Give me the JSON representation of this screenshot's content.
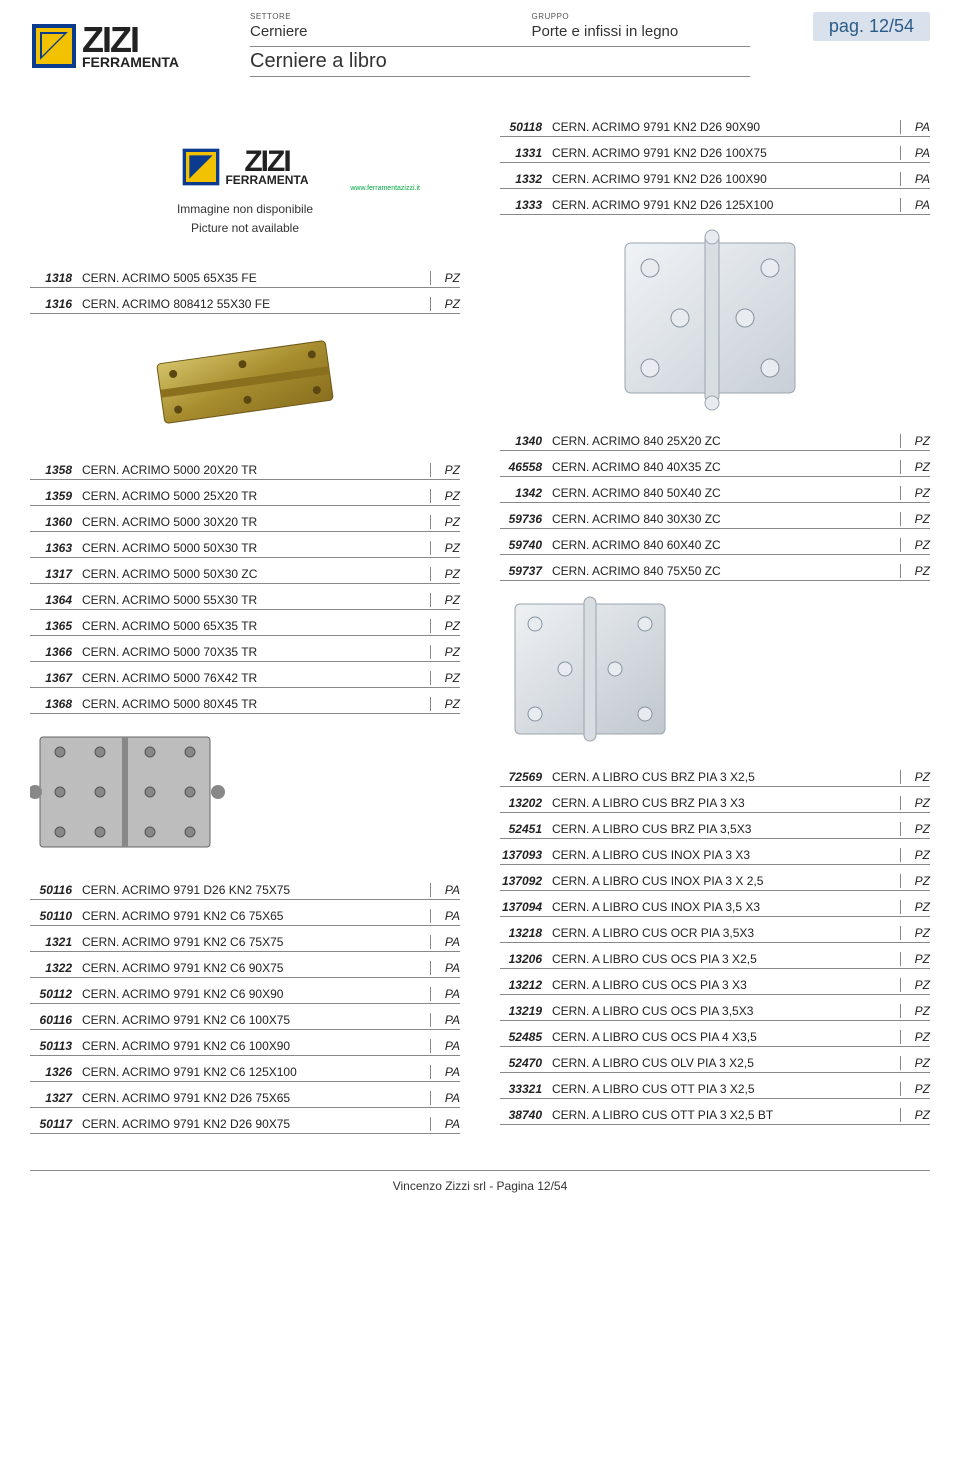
{
  "header": {
    "sector_label": "SETTORE",
    "sector_value": "Cerniere",
    "group_label": "GRUPPO",
    "group_value": "Porte e infissi in legno",
    "title": "Cerniere a libro",
    "page_badge": "pag. 12/54",
    "logo_brand": "ZIZI",
    "logo_sub": "FERRAMENTA",
    "logo_site": "www.ferramentazizzi.it"
  },
  "no_image": {
    "line1": "Immagine non disponibile",
    "line2": "Picture not available"
  },
  "colors": {
    "logo_blue": "#0a3b8f",
    "logo_yellow": "#f2c200",
    "badge_bg": "#d9e2ec",
    "badge_text": "#2a5b87",
    "hinge_brass": "#b8a24a",
    "hinge_steel": "#d8dde2",
    "hinge_dark": "#8b8b8b",
    "hinge_shadow": "#5a5a5a"
  },
  "left": {
    "group1": [
      {
        "code": "1318",
        "desc": "CERN. ACRIMO 5005 65X35 FE",
        "unit": "PZ"
      },
      {
        "code": "1316",
        "desc": "CERN. ACRIMO 808412 55X30 FE",
        "unit": "PZ"
      }
    ],
    "group2": [
      {
        "code": "1358",
        "desc": "CERN. ACRIMO 5000 20X20 TR",
        "unit": "PZ"
      },
      {
        "code": "1359",
        "desc": "CERN. ACRIMO 5000 25X20 TR",
        "unit": "PZ"
      },
      {
        "code": "1360",
        "desc": "CERN. ACRIMO 5000 30X20 TR",
        "unit": "PZ"
      },
      {
        "code": "1363",
        "desc": "CERN. ACRIMO 5000 50X30 TR",
        "unit": "PZ"
      },
      {
        "code": "1317",
        "desc": "CERN. ACRIMO 5000 50X30 ZC",
        "unit": "PZ"
      },
      {
        "code": "1364",
        "desc": "CERN. ACRIMO 5000 55X30 TR",
        "unit": "PZ"
      },
      {
        "code": "1365",
        "desc": "CERN. ACRIMO 5000 65X35 TR",
        "unit": "PZ"
      },
      {
        "code": "1366",
        "desc": "CERN. ACRIMO 5000 70X35 TR",
        "unit": "PZ"
      },
      {
        "code": "1367",
        "desc": "CERN. ACRIMO 5000 76X42 TR",
        "unit": "PZ"
      },
      {
        "code": "1368",
        "desc": "CERN. ACRIMO 5000 80X45 TR",
        "unit": "PZ"
      }
    ],
    "group3": [
      {
        "code": "50116",
        "desc": "CERN. ACRIMO 9791 D26 KN2 75X75",
        "unit": "PA"
      },
      {
        "code": "50110",
        "desc": "CERN. ACRIMO 9791 KN2 C6 75X65",
        "unit": "PA"
      },
      {
        "code": "1321",
        "desc": "CERN. ACRIMO 9791 KN2 C6 75X75",
        "unit": "PA"
      },
      {
        "code": "1322",
        "desc": "CERN. ACRIMO 9791 KN2 C6 90X75",
        "unit": "PA"
      },
      {
        "code": "50112",
        "desc": "CERN. ACRIMO 9791 KN2 C6 90X90",
        "unit": "PA"
      },
      {
        "code": "60116",
        "desc": "CERN. ACRIMO 9791 KN2 C6 100X75",
        "unit": "PA"
      },
      {
        "code": "50113",
        "desc": "CERN. ACRIMO 9791 KN2 C6 100X90",
        "unit": "PA"
      },
      {
        "code": "1326",
        "desc": "CERN. ACRIMO 9791 KN2 C6 125X100",
        "unit": "PA"
      },
      {
        "code": "1327",
        "desc": "CERN. ACRIMO 9791 KN2 D26 75X65",
        "unit": "PA"
      },
      {
        "code": "50117",
        "desc": "CERN. ACRIMO 9791 KN2 D26 90X75",
        "unit": "PA"
      }
    ]
  },
  "right": {
    "group1": [
      {
        "code": "50118",
        "desc": "CERN. ACRIMO 9791 KN2 D26 90X90",
        "unit": "PA"
      },
      {
        "code": "1331",
        "desc": "CERN. ACRIMO 9791 KN2 D26 100X75",
        "unit": "PA"
      },
      {
        "code": "1332",
        "desc": "CERN. ACRIMO 9791 KN2 D26 100X90",
        "unit": "PA"
      },
      {
        "code": "1333",
        "desc": "CERN. ACRIMO 9791 KN2 D26 125X100",
        "unit": "PA"
      }
    ],
    "group2": [
      {
        "code": "1340",
        "desc": "CERN. ACRIMO 840 25X20 ZC",
        "unit": "PZ"
      },
      {
        "code": "46558",
        "desc": "CERN. ACRIMO 840 40X35 ZC",
        "unit": "PZ"
      },
      {
        "code": "1342",
        "desc": "CERN. ACRIMO 840 50X40 ZC",
        "unit": "PZ"
      },
      {
        "code": "59736",
        "desc": "CERN. ACRIMO 840 30X30 ZC",
        "unit": "PZ"
      },
      {
        "code": "59740",
        "desc": "CERN. ACRIMO 840 60X40 ZC",
        "unit": "PZ"
      },
      {
        "code": "59737",
        "desc": "CERN. ACRIMO 840 75X50 ZC",
        "unit": "PZ"
      }
    ],
    "group3": [
      {
        "code": "72569",
        "desc": "CERN. A LIBRO CUS BRZ PIA 3 X2,5",
        "unit": "PZ"
      },
      {
        "code": "13202",
        "desc": "CERN. A LIBRO CUS BRZ PIA 3 X3",
        "unit": "PZ"
      },
      {
        "code": "52451",
        "desc": "CERN. A LIBRO CUS BRZ PIA 3,5X3",
        "unit": "PZ"
      },
      {
        "code": "137093",
        "desc": "CERN. A LIBRO CUS INOX PIA 3 X3",
        "unit": "PZ"
      },
      {
        "code": "137092",
        "desc": "CERN. A LIBRO CUS INOX PIA 3 X 2,5",
        "unit": "PZ"
      },
      {
        "code": "137094",
        "desc": "CERN. A LIBRO CUS INOX PIA 3,5 X3",
        "unit": "PZ"
      },
      {
        "code": "13218",
        "desc": "CERN. A LIBRO CUS OCR PIA 3,5X3",
        "unit": "PZ"
      },
      {
        "code": "13206",
        "desc": "CERN. A LIBRO CUS OCS PIA 3 X2,5",
        "unit": "PZ"
      },
      {
        "code": "13212",
        "desc": "CERN. A LIBRO CUS OCS PIA 3 X3",
        "unit": "PZ"
      },
      {
        "code": "13219",
        "desc": "CERN. A LIBRO CUS OCS PIA 3,5X3",
        "unit": "PZ"
      },
      {
        "code": "52485",
        "desc": "CERN. A LIBRO CUS OCS PIA 4 X3,5",
        "unit": "PZ"
      },
      {
        "code": "52470",
        "desc": "CERN. A LIBRO CUS OLV PIA 3 X2,5",
        "unit": "PZ"
      },
      {
        "code": "33321",
        "desc": "CERN. A LIBRO CUS OTT PIA 3 X2,5",
        "unit": "PZ"
      },
      {
        "code": "38740",
        "desc": "CERN. A LIBRO CUS OTT PIA 3 X2,5 BT",
        "unit": "PZ"
      }
    ]
  },
  "footer": "Vincenzo Zizzi srl - Pagina 12/54"
}
